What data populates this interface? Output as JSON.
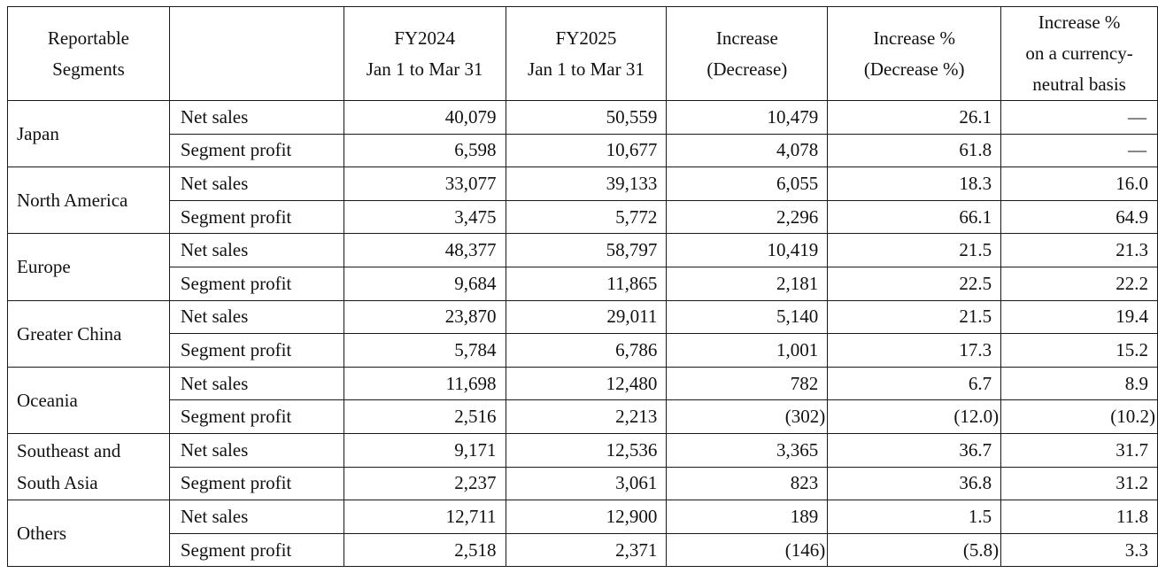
{
  "header": {
    "segments_line1": "Reportable",
    "segments_line2": "Segments",
    "blank": "",
    "fy2024_line1": "FY2024",
    "fy2024_line2": "Jan 1 to Mar 31",
    "fy2025_line1": "FY2025",
    "fy2025_line2": "Jan 1 to Mar 31",
    "increase_line1": "Increase",
    "increase_line2": "(Decrease)",
    "pct_line1": "Increase %",
    "pct_line2": "(Decrease %)",
    "cn_line1": "Increase %",
    "cn_line2": "on a currency-",
    "cn_line3": "neutral basis"
  },
  "segments": [
    {
      "name_lines": [
        "Japan"
      ],
      "rows": [
        {
          "item": "Net sales",
          "fy2024": "40,079",
          "fy2025": "50,559",
          "increase": "10,479",
          "pct": "26.1",
          "cn": "—"
        },
        {
          "item": "Segment profit",
          "fy2024": "6,598",
          "fy2025": "10,677",
          "increase": "4,078",
          "pct": "61.8",
          "cn": "—"
        }
      ]
    },
    {
      "name_lines": [
        "North America"
      ],
      "rows": [
        {
          "item": "Net sales",
          "fy2024": "33,077",
          "fy2025": "39,133",
          "increase": "6,055",
          "pct": "18.3",
          "cn": "16.0"
        },
        {
          "item": "Segment profit",
          "fy2024": "3,475",
          "fy2025": "5,772",
          "increase": "2,296",
          "pct": "66.1",
          "cn": "64.9"
        }
      ]
    },
    {
      "name_lines": [
        "Europe"
      ],
      "rows": [
        {
          "item": "Net sales",
          "fy2024": "48,377",
          "fy2025": "58,797",
          "increase": "10,419",
          "pct": "21.5",
          "cn": "21.3"
        },
        {
          "item": "Segment profit",
          "fy2024": "9,684",
          "fy2025": "11,865",
          "increase": "2,181",
          "pct": "22.5",
          "cn": "22.2"
        }
      ]
    },
    {
      "name_lines": [
        "Greater China"
      ],
      "rows": [
        {
          "item": "Net sales",
          "fy2024": "23,870",
          "fy2025": "29,011",
          "increase": "5,140",
          "pct": "21.5",
          "cn": "19.4"
        },
        {
          "item": "Segment profit",
          "fy2024": "5,784",
          "fy2025": "6,786",
          "increase": "1,001",
          "pct": "17.3",
          "cn": "15.2"
        }
      ]
    },
    {
      "name_lines": [
        "Oceania"
      ],
      "rows": [
        {
          "item": "Net sales",
          "fy2024": "11,698",
          "fy2025": "12,480",
          "increase": "782",
          "pct": "6.7",
          "cn": "8.9"
        },
        {
          "item": "Segment profit",
          "fy2024": "2,516",
          "fy2025": "2,213",
          "increase": "(302)",
          "pct": "(12.0)",
          "cn": "(10.2)"
        }
      ]
    },
    {
      "name_lines": [
        "Southeast and",
        "South Asia"
      ],
      "rows": [
        {
          "item": "Net sales",
          "fy2024": "9,171",
          "fy2025": "12,536",
          "increase": "3,365",
          "pct": "36.7",
          "cn": "31.7"
        },
        {
          "item": "Segment profit",
          "fy2024": "2,237",
          "fy2025": "3,061",
          "increase": "823",
          "pct": "36.8",
          "cn": "31.2"
        }
      ]
    },
    {
      "name_lines": [
        "Others"
      ],
      "rows": [
        {
          "item": "Net sales",
          "fy2024": "12,711",
          "fy2025": "12,900",
          "increase": "189",
          "pct": "1.5",
          "cn": "11.8"
        },
        {
          "item": "Segment profit",
          "fy2024": "2,518",
          "fy2025": "2,371",
          "increase": "(146)",
          "pct": "(5.8)",
          "cn": "3.3"
        }
      ]
    }
  ]
}
